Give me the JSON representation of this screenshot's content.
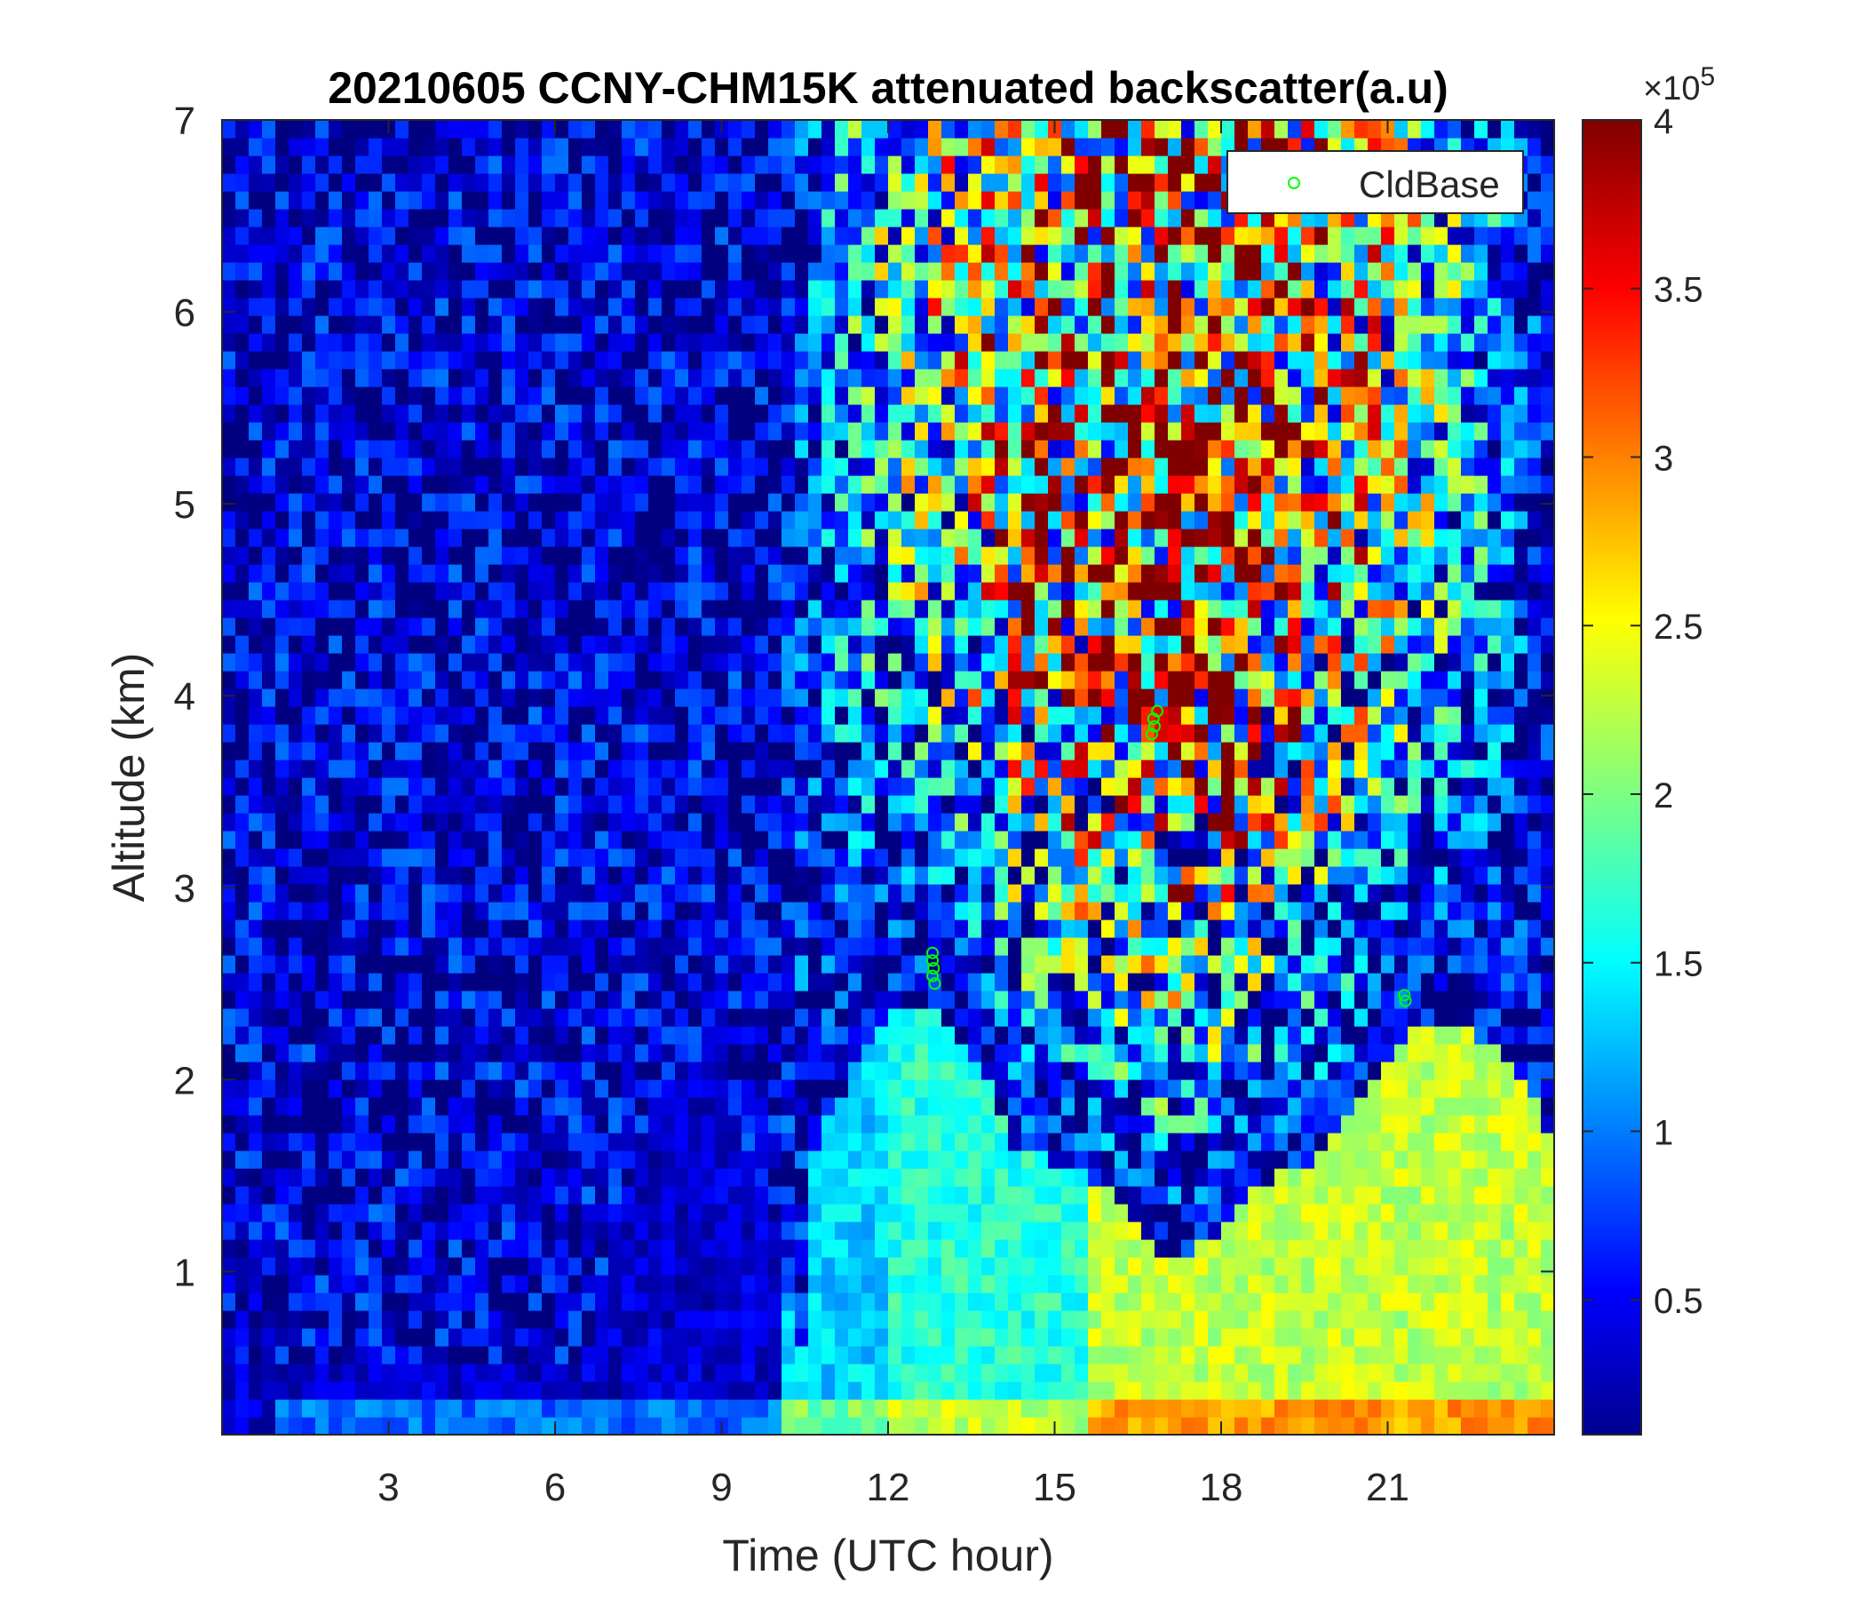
{
  "chart_data": {
    "type": "heatmap",
    "title": "20210605 CCNY-CHM15K attenuated backscatter(a.u)",
    "xlabel": "Time (UTC hour)",
    "ylabel": "Altitude (km)",
    "xlim": [
      0,
      24
    ],
    "ylim": [
      0.15,
      7
    ],
    "x_ticks": [
      3,
      6,
      9,
      12,
      15,
      18,
      21
    ],
    "y_ticks": [
      1,
      2,
      3,
      4,
      5,
      6,
      7
    ],
    "colorbar": {
      "colormap": "jet",
      "range": [
        0.1,
        4
      ],
      "ticks": [
        0.5,
        1,
        1.5,
        2,
        2.5,
        3,
        3.5,
        4
      ],
      "exponent_label": "×10",
      "exponent": "5"
    },
    "legend": {
      "position": "top-right",
      "entries": [
        "CldBase"
      ]
    },
    "cloud_base": {
      "name": "CldBase",
      "color": "#00ff00",
      "points": [
        {
          "x": 12.8,
          "y": 2.66
        },
        {
          "x": 12.8,
          "y": 2.62
        },
        {
          "x": 12.82,
          "y": 2.58
        },
        {
          "x": 12.8,
          "y": 2.54
        },
        {
          "x": 12.84,
          "y": 2.5
        },
        {
          "x": 16.75,
          "y": 3.8
        },
        {
          "x": 16.8,
          "y": 3.84
        },
        {
          "x": 16.78,
          "y": 3.88
        },
        {
          "x": 16.85,
          "y": 3.92
        },
        {
          "x": 21.3,
          "y": 2.44
        },
        {
          "x": 21.32,
          "y": 2.41
        }
      ]
    }
  }
}
